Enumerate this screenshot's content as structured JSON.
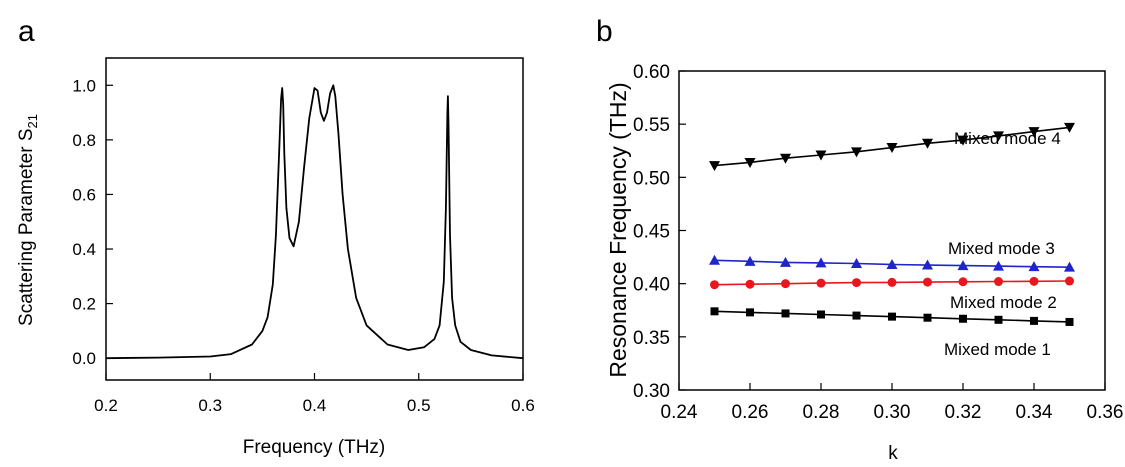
{
  "chart_data": [
    {
      "panel": "a",
      "type": "line",
      "title": "",
      "xlabel": "Frequency (THz)",
      "ylabel_main": "Scattering Parameter S",
      "ylabel_sub": "21",
      "xlim": [
        0.2,
        0.6
      ],
      "ylim": [
        -0.08,
        1.1
      ],
      "xticks": [
        "0.2",
        "0.3",
        "0.4",
        "0.5",
        "0.6"
      ],
      "yticks": [
        "0.0",
        "0.2",
        "0.4",
        "0.6",
        "0.8",
        "1.0"
      ],
      "grid": false,
      "legend": "none",
      "series": [
        {
          "name": "S21",
          "color": "#000000",
          "x": [
            0.2,
            0.25,
            0.3,
            0.32,
            0.34,
            0.35,
            0.355,
            0.36,
            0.363,
            0.366,
            0.368,
            0.369,
            0.37,
            0.371,
            0.373,
            0.376,
            0.38,
            0.385,
            0.39,
            0.395,
            0.4,
            0.403,
            0.406,
            0.409,
            0.412,
            0.415,
            0.418,
            0.42,
            0.423,
            0.427,
            0.432,
            0.44,
            0.45,
            0.47,
            0.49,
            0.505,
            0.515,
            0.52,
            0.524,
            0.526,
            0.5275,
            0.528,
            0.5285,
            0.53,
            0.532,
            0.535,
            0.54,
            0.55,
            0.57,
            0.6
          ],
          "y": [
            0.0,
            0.002,
            0.006,
            0.015,
            0.05,
            0.1,
            0.15,
            0.27,
            0.45,
            0.75,
            0.95,
            0.99,
            0.93,
            0.75,
            0.55,
            0.44,
            0.41,
            0.5,
            0.7,
            0.88,
            0.99,
            0.98,
            0.9,
            0.87,
            0.9,
            0.97,
            1.0,
            0.96,
            0.82,
            0.6,
            0.4,
            0.22,
            0.12,
            0.05,
            0.03,
            0.04,
            0.07,
            0.12,
            0.28,
            0.55,
            0.9,
            0.96,
            0.86,
            0.45,
            0.22,
            0.12,
            0.06,
            0.03,
            0.01,
            0.0
          ]
        }
      ]
    },
    {
      "panel": "b",
      "type": "line",
      "title": "",
      "xlabel": "k",
      "ylabel": "Resonance Frequency (THz)",
      "xlim": [
        0.24,
        0.36
      ],
      "ylim": [
        0.3,
        0.6
      ],
      "xticks": [
        "0.24",
        "0.26",
        "0.28",
        "0.30",
        "0.32",
        "0.34",
        "0.36"
      ],
      "yticks": [
        "0.30",
        "0.35",
        "0.40",
        "0.45",
        "0.50",
        "0.55",
        "0.60"
      ],
      "grid": false,
      "legend": "inline-annotations",
      "x": [
        0.25,
        0.26,
        0.27,
        0.28,
        0.29,
        0.3,
        0.31,
        0.32,
        0.33,
        0.34,
        0.35
      ],
      "series": [
        {
          "name": "Mixed mode 1",
          "color": "#000000",
          "marker": "square",
          "values": [
            0.374,
            0.373,
            0.372,
            0.371,
            0.37,
            0.369,
            0.368,
            0.367,
            0.366,
            0.365,
            0.364
          ]
        },
        {
          "name": "Mixed mode 2",
          "color": "#e8171d",
          "marker": "circle",
          "values": [
            0.399,
            0.3995,
            0.4,
            0.4005,
            0.401,
            0.4012,
            0.4015,
            0.4018,
            0.402,
            0.4022,
            0.4025
          ]
        },
        {
          "name": "Mixed mode 3",
          "color": "#1f25c8",
          "marker": "triangle-up",
          "values": [
            0.422,
            0.421,
            0.42,
            0.4195,
            0.419,
            0.418,
            0.4175,
            0.417,
            0.4165,
            0.416,
            0.4155
          ]
        },
        {
          "name": "Mixed mode 4",
          "color": "#000000",
          "marker": "triangle-down",
          "values": [
            0.511,
            0.514,
            0.518,
            0.521,
            0.524,
            0.528,
            0.532,
            0.535,
            0.539,
            0.543,
            0.547
          ]
        }
      ],
      "annotations": [
        "Mixed mode 4",
        "Mixed mode 3",
        "Mixed mode 2",
        "Mixed mode 1"
      ]
    }
  ]
}
